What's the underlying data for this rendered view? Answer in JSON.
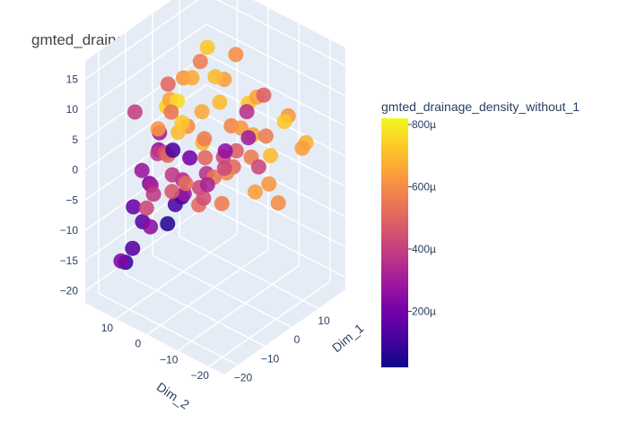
{
  "title": "gmted_drainage_density_without_1",
  "colorbar": {
    "title": "gmted_drainage_density_without_1",
    "ticks": [
      "200µ",
      "400µ",
      "600µ",
      "800µ"
    ],
    "tick_values": [
      200,
      400,
      600,
      800
    ],
    "range": [
      20,
      820
    ],
    "colors": [
      "#0d0887",
      "#46039f",
      "#7201a8",
      "#9c179e",
      "#bd3786",
      "#d8576b",
      "#ed7953",
      "#fb9f3a",
      "#fdca26",
      "#f0f921"
    ]
  },
  "axes": {
    "x_title": "Dim_1",
    "x_ticks": [
      "-20",
      "-10",
      "0",
      "10"
    ],
    "y_title": "Dim_2",
    "y_ticks": [
      "-20",
      "-10",
      "0",
      "10"
    ],
    "z_ticks": [
      "-20",
      "-15",
      "-10",
      "-5",
      "0",
      "5",
      "10",
      "15"
    ]
  },
  "chart_data": {
    "type": "scatter",
    "mode": "3d",
    "title": "gmted_drainage_density_without_1",
    "xlabel": "Dim_1",
    "ylabel": "Dim_2",
    "zlabel": "",
    "xlim": [
      -25,
      20
    ],
    "ylim": [
      -25,
      20
    ],
    "zlim": [
      -22,
      18
    ],
    "color_label": "gmted_drainage_density_without_1",
    "color_range": [
      20,
      820
    ],
    "points": [
      [
        -8,
        5,
        10,
        760
      ],
      [
        -5,
        10,
        8,
        650
      ],
      [
        -10,
        3,
        6,
        700
      ],
      [
        -3,
        6,
        4,
        600
      ],
      [
        -12,
        0,
        9,
        720
      ],
      [
        -6,
        -2,
        5,
        560
      ],
      [
        -2,
        2,
        2,
        680
      ],
      [
        -8,
        -4,
        3,
        500
      ],
      [
        -14,
        6,
        7,
        620
      ],
      [
        -4,
        12,
        6,
        740
      ],
      [
        -9,
        8,
        1,
        450
      ],
      [
        -11,
        4,
        -1,
        380
      ],
      [
        -7,
        -6,
        0,
        540
      ],
      [
        0,
        4,
        6,
        660
      ],
      [
        2,
        0,
        8,
        700
      ],
      [
        4,
        -2,
        4,
        580
      ],
      [
        6,
        2,
        10,
        640
      ],
      [
        8,
        -4,
        7,
        720
      ],
      [
        -1,
        -8,
        3,
        480
      ],
      [
        3,
        -6,
        5,
        620
      ],
      [
        10,
        -8,
        2,
        560
      ],
      [
        12,
        -2,
        0,
        650
      ],
      [
        14,
        -6,
        -3,
        700
      ],
      [
        5,
        -10,
        -1,
        420
      ],
      [
        -5,
        14,
        -2,
        380
      ],
      [
        -2,
        16,
        0,
        300
      ],
      [
        0,
        18,
        -4,
        260
      ],
      [
        -8,
        14,
        -6,
        200
      ],
      [
        2,
        12,
        -8,
        340
      ],
      [
        -3,
        10,
        -10,
        120
      ],
      [
        4,
        14,
        -12,
        80
      ],
      [
        -6,
        18,
        -14,
        150
      ],
      [
        1,
        16,
        -16,
        60
      ],
      [
        -10,
        12,
        -12,
        250
      ],
      [
        6,
        10,
        -10,
        420
      ],
      [
        8,
        12,
        -14,
        510
      ],
      [
        -12,
        10,
        -4,
        320
      ],
      [
        -14,
        14,
        -8,
        180
      ],
      [
        -16,
        8,
        -6,
        420
      ],
      [
        -18,
        4,
        -2,
        380
      ],
      [
        -20,
        6,
        2,
        280
      ],
      [
        -15,
        2,
        4,
        500
      ],
      [
        -18,
        -2,
        0,
        460
      ],
      [
        -16,
        -6,
        6,
        200
      ],
      [
        -20,
        -4,
        8,
        120
      ],
      [
        -14,
        -10,
        2,
        320
      ],
      [
        -10,
        -12,
        4,
        420
      ],
      [
        -12,
        -14,
        8,
        260
      ],
      [
        16,
        2,
        -6,
        560
      ],
      [
        18,
        -2,
        -10,
        620
      ],
      [
        14,
        6,
        -8,
        500
      ],
      [
        12,
        8,
        -14,
        560
      ],
      [
        -4,
        -14,
        12,
        360
      ],
      [
        0,
        -16,
        14,
        480
      ],
      [
        -8,
        -18,
        10,
        300
      ],
      [
        2,
        -12,
        12,
        650
      ],
      [
        10,
        -14,
        6,
        720
      ],
      [
        8,
        4,
        -4,
        420
      ],
      [
        4,
        6,
        -6,
        360
      ],
      [
        -2,
        8,
        -8,
        280
      ],
      [
        -6,
        4,
        -4,
        520
      ],
      [
        -4,
        0,
        -6,
        440
      ],
      [
        0,
        -4,
        -2,
        580
      ],
      [
        6,
        -8,
        -6,
        640
      ],
      [
        10,
        -12,
        -8,
        600
      ],
      [
        -14,
        18,
        -18,
        220
      ],
      [
        -10,
        20,
        -20,
        90
      ],
      [
        -12,
        16,
        -16,
        140
      ],
      [
        -2,
        -2,
        14,
        700
      ],
      [
        2,
        4,
        16,
        720
      ],
      [
        -6,
        2,
        14,
        660
      ],
      [
        -16,
        0,
        12,
        540
      ],
      [
        -18,
        10,
        10,
        400
      ],
      [
        16,
        -10,
        4,
        620
      ],
      [
        18,
        -14,
        0,
        680
      ],
      [
        12,
        -18,
        2,
        640
      ],
      [
        -8,
        8,
        12,
        500
      ],
      [
        0,
        10,
        10,
        620
      ],
      [
        4,
        8,
        12,
        560
      ],
      [
        8,
        0,
        14,
        600
      ]
    ]
  }
}
